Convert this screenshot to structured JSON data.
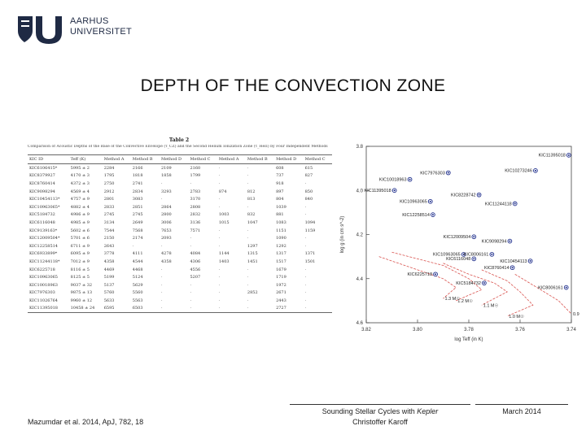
{
  "logo": {
    "line1": "AARHUS",
    "line2": "UNIVERSITET",
    "icon": "au-seal-logo",
    "color": "#1f2a44"
  },
  "slide": {
    "title": "DEPTH OF THE CONVECTION ZONE"
  },
  "table": {
    "title": "Table 2",
    "caption": "Comparison of Acoustic Depths of the Base of the Convective Envelope (τ_CZ) and the Second Helium Ionization Zone (τ_HeII) by Four Independent Methods",
    "columns": [
      "KIC ID",
      "Teff (K)",
      "Method A",
      "Method B",
      "Method D",
      "Method C",
      "Method A",
      "Method B",
      "Method D",
      "Method C"
    ],
    "rows": [
      [
        "KIC6106415*",
        "5995 ± 2",
        "2284",
        "2166",
        "2109",
        "2160",
        "·",
        "·",
        "608",
        "615"
      ],
      [
        "KIC8379927",
        "4170 ± 3",
        "1795",
        "1818",
        "1858",
        "1799",
        "·",
        "·",
        "737",
        "827"
      ],
      [
        "KIC8760414",
        "4372 ± 3",
        "2750",
        "2741",
        "·",
        "·",
        "·",
        "·",
        "918",
        "·"
      ],
      [
        "KIC9098294",
        "4569 ± 4",
        "2912",
        "2834",
        "3293",
        "2783",
        "874",
        "812",
        "897",
        "850"
      ],
      [
        "KIC10454113*",
        "4757 ± 9",
        "2801",
        "3083",
        "·",
        "3170",
        "·",
        "813",
        "804",
        "840"
      ],
      [
        "KIC10963065*",
        "4882 ± 4",
        "2833",
        "2851",
        "2864",
        "2808",
        "·",
        "·",
        "1039",
        "·"
      ],
      [
        "KIC5184732",
        "4986 ± 9",
        "2745",
        "2745",
        "2800",
        "2832",
        "1003",
        "832",
        "881",
        "·"
      ],
      [
        "KIC6116048",
        "4985 ± 9",
        "3134",
        "2649",
        "3006",
        "3136",
        "1015",
        "1047",
        "1083",
        "1094"
      ],
      [
        "KIC9139163*",
        "5602 ± 6",
        "7544",
        "7568",
        "7653",
        "7571",
        "·",
        "·",
        "1151",
        "1159"
      ],
      [
        "KIC12009504*",
        "5701 ± 6",
        "2150",
        "2174",
        "2093",
        "·",
        "·",
        "·",
        "1090",
        "·"
      ],
      [
        "KIC12258514",
        "6711 ± 9",
        "2643",
        "·",
        "·",
        "·",
        "·",
        "1297",
        "1292",
        "·"
      ],
      [
        "KIC6933899*",
        "6095 ± 9",
        "3778",
        "4111",
        "4278",
        "4084",
        "1144",
        "1315",
        "1317",
        "1371"
      ],
      [
        "KIC11244118*",
        "7012 ± 9",
        "4358",
        "4544",
        "4358",
        "4306",
        "1403",
        "1451",
        "1517",
        "1501"
      ],
      [
        "KIC6225718",
        "8116 ± 5",
        "4469",
        "4468",
        "·",
        "4556",
        "·",
        "·",
        "1679",
        "·"
      ],
      [
        "KIC10963065",
        "8125 ± 5",
        "5199",
        "5124",
        "·",
        "5207",
        "·",
        "·",
        "1719",
        "·"
      ],
      [
        "KIC10018963",
        "9037 ± 32",
        "5137",
        "5629",
        "·",
        "·",
        "·",
        "·",
        "1972",
        "·"
      ],
      [
        "KIC7976303",
        "9875 ± 13",
        "5760",
        "5560",
        "·",
        "·",
        "·",
        "2852",
        "2671",
        "·"
      ],
      [
        "KIC11026764",
        "9960 ± 12",
        "5633",
        "5563",
        "·",
        "·",
        "·",
        "·",
        "2443",
        "·"
      ],
      [
        "KIC11395018",
        "10458 ± 24",
        "6595",
        "6503",
        "·",
        "·",
        "·",
        "·",
        "2727",
        "·"
      ]
    ]
  },
  "chart_data": {
    "type": "line",
    "title": "",
    "xlabel": "log Teff (in K)",
    "ylabel": "log g (in cm s^-2)",
    "xlim": [
      3.82,
      3.74
    ],
    "ylim": [
      3.8,
      4.6
    ],
    "x_ticks": [
      "3.82",
      "3.80",
      "3.78",
      "3.76",
      "3.74"
    ],
    "y_ticks": [
      "3.8",
      "4.0",
      "4.2",
      "4.4",
      "4.6"
    ],
    "series": [
      {
        "name": "1.3 M☉",
        "x": [
          3.815,
          3.8,
          3.79,
          3.785,
          3.79
        ],
        "y": [
          4.3,
          4.36,
          4.4,
          4.44,
          4.49
        ]
      },
      {
        "name": "1.2 M☉",
        "x": [
          3.81,
          3.79,
          3.78,
          3.775,
          3.785
        ],
        "y": [
          4.28,
          4.34,
          4.4,
          4.45,
          4.5
        ]
      },
      {
        "name": "1.1 M☉",
        "x": [
          3.79,
          3.78,
          3.77,
          3.765,
          3.775
        ],
        "y": [
          4.33,
          4.38,
          4.42,
          4.46,
          4.52
        ]
      },
      {
        "name": "1.0 M☉",
        "x": [
          3.775,
          3.765,
          3.76,
          3.755,
          3.765
        ],
        "y": [
          4.36,
          4.41,
          4.46,
          4.52,
          4.57
        ]
      },
      {
        "name": "0.9 M☉",
        "x": [
          3.762,
          3.752,
          3.745,
          3.74
        ],
        "y": [
          4.38,
          4.45,
          4.5,
          4.56
        ]
      }
    ],
    "points": [
      {
        "label": "KIC11395018",
        "x": 3.741,
        "y": 3.84
      },
      {
        "label": "KIC10273246",
        "x": 3.754,
        "y": 3.91
      },
      {
        "label": "KIC7976303",
        "x": 3.788,
        "y": 3.92
      },
      {
        "label": "KIC10018963",
        "x": 3.803,
        "y": 3.95
      },
      {
        "label": "KIC11395018",
        "x": 3.809,
        "y": 4.0
      },
      {
        "label": "KIC8228742",
        "x": 3.776,
        "y": 4.02
      },
      {
        "label": "KIC10963065",
        "x": 3.795,
        "y": 4.05
      },
      {
        "label": "KIC11244118",
        "x": 3.762,
        "y": 4.06
      },
      {
        "label": "KIC12258514",
        "x": 3.794,
        "y": 4.11
      },
      {
        "label": "KIC12009504",
        "x": 3.778,
        "y": 4.21
      },
      {
        "label": "KIC9098294",
        "x": 3.764,
        "y": 4.23
      },
      {
        "label": "KIC10963065",
        "x": 3.782,
        "y": 4.29
      },
      {
        "label": "KIC6116048",
        "x": 3.778,
        "y": 4.31
      },
      {
        "label": "KIC8006161",
        "x": 3.771,
        "y": 4.29
      },
      {
        "label": "KIC10454113",
        "x": 3.756,
        "y": 4.32
      },
      {
        "label": "KIC8760414",
        "x": 3.763,
        "y": 4.35
      },
      {
        "label": "KIC6225718",
        "x": 3.793,
        "y": 4.38
      },
      {
        "label": "KIC5184732",
        "x": 3.774,
        "y": 4.42
      },
      {
        "label": "KIC8006161",
        "x": 3.742,
        "y": 4.44
      }
    ],
    "point_color": "#1a2a8a",
    "track_color": "#d9534f",
    "grid": false
  },
  "footer": {
    "left": "Mazumdar et al. 2014, ApJ, 782, 18",
    "center_prefix": "Sounding Stellar Cycles with ",
    "center_italic": "Kepler",
    "center_line2": "Christoffer Karoff",
    "right": "March 2014"
  }
}
